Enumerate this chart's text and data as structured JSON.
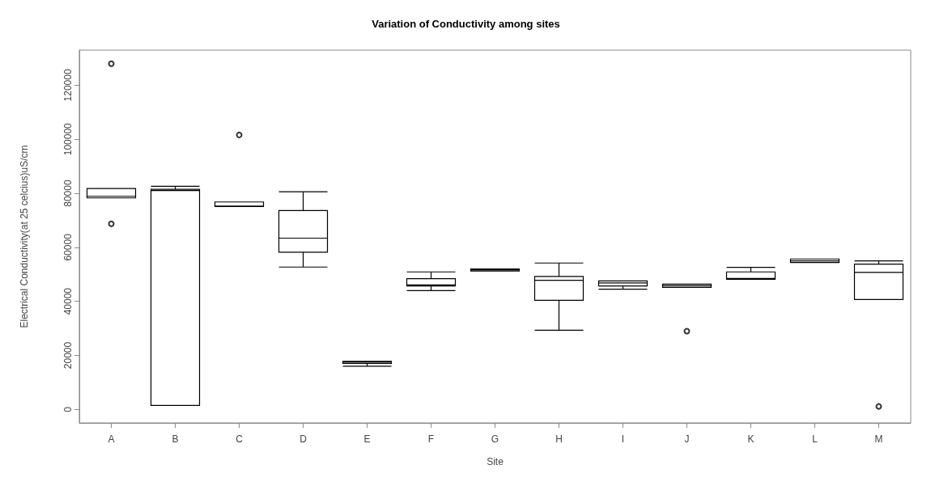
{
  "chart_data": {
    "type": "box",
    "title": "Variation of Conductivity among sites",
    "xlabel": "Site",
    "ylabel": "Electrical Conductivity(at 25 celcius)uS/cm",
    "categories": [
      "A",
      "B",
      "C",
      "D",
      "E",
      "F",
      "G",
      "H",
      "I",
      "J",
      "K",
      "L",
      "M"
    ],
    "boxes": [
      {
        "low": 78300,
        "q1": 78300,
        "median": 78900,
        "q3": 81800,
        "high": 81800,
        "outliers": [
          128000,
          68700
        ]
      },
      {
        "low": 1500,
        "q1": 1500,
        "median": 81000,
        "q3": 81500,
        "high": 82600
      },
      {
        "low": 75100,
        "q1": 75100,
        "median": 75300,
        "q3": 76800,
        "high": 76800,
        "outliers": [
          101600
        ]
      },
      {
        "low": 52700,
        "q1": 58200,
        "median": 63400,
        "q3": 73600,
        "high": 80600
      },
      {
        "low": 16000,
        "q1": 17000,
        "median": 17500,
        "q3": 17800,
        "high": 17800
      },
      {
        "low": 44000,
        "q1": 45700,
        "median": 46100,
        "q3": 48400,
        "high": 50900
      },
      {
        "low": 51200,
        "q1": 51200,
        "median": 51600,
        "q3": 52000,
        "high": 52000
      },
      {
        "low": 29300,
        "q1": 40400,
        "median": 47800,
        "q3": 49200,
        "high": 54200
      },
      {
        "low": 44500,
        "q1": 45700,
        "median": 46800,
        "q3": 47600,
        "high": 47600
      },
      {
        "low": 45200,
        "q1": 45200,
        "median": 45800,
        "q3": 46400,
        "high": 46400,
        "outliers": [
          29000
        ]
      },
      {
        "low": 48200,
        "q1": 48200,
        "median": 48500,
        "q3": 50900,
        "high": 52600
      },
      {
        "low": 54400,
        "q1": 54400,
        "median": 55000,
        "q3": 55700,
        "high": 55700
      },
      {
        "low": 40700,
        "q1": 40700,
        "median": 50700,
        "q3": 53800,
        "high": 55000,
        "outliers": [
          1100
        ]
      }
    ],
    "color": "#000000",
    "ylim": [
      -5000,
      133000
    ],
    "yticks": [
      0,
      20000,
      40000,
      60000,
      80000,
      100000,
      120000
    ],
    "grid": false
  }
}
